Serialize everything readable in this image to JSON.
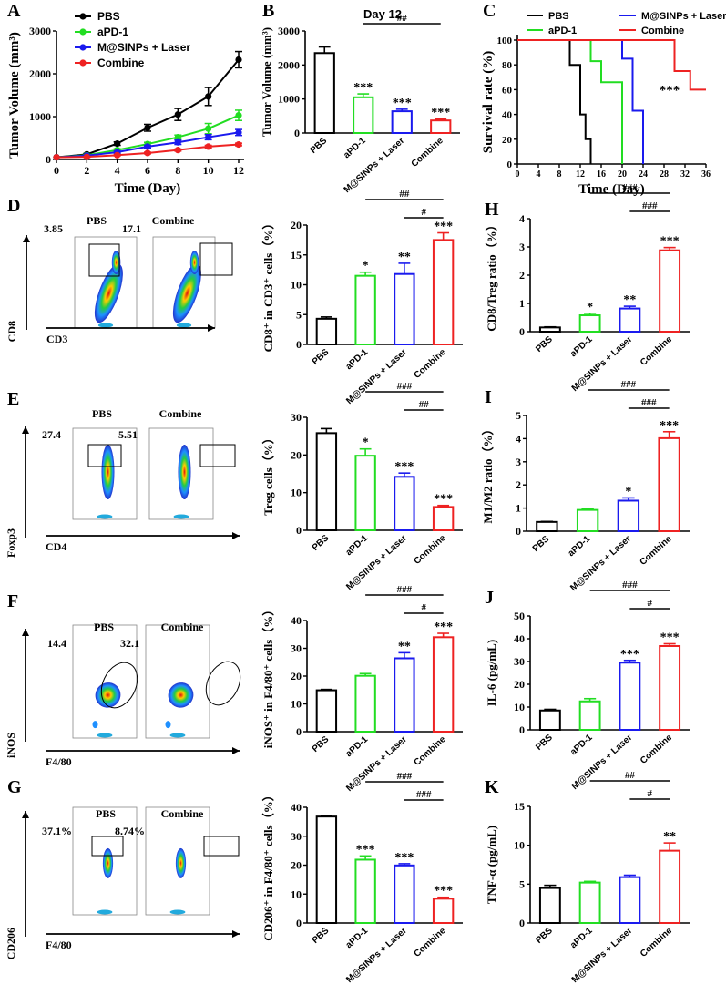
{
  "colors": {
    "pbs": "#000000",
    "apd1": "#22dd22",
    "mlaser": "#1a1aee",
    "combine": "#ee2222",
    "text": "#000000"
  },
  "chart_data": [
    {
      "id": "A",
      "type": "line",
      "panel_label": "A",
      "xlabel": "Time (Day)",
      "ylabel": "Tumor Volume (mm³)",
      "xlim": [
        0,
        12
      ],
      "ylim": [
        0,
        3000
      ],
      "xticks": [
        0,
        2,
        4,
        6,
        8,
        10,
        12
      ],
      "yticks": [
        0,
        1000,
        2000,
        3000
      ],
      "x": [
        0,
        2,
        4,
        6,
        8,
        10,
        12
      ],
      "series": [
        {
          "name": "PBS",
          "color": "#000000",
          "values": [
            50,
            120,
            370,
            740,
            1050,
            1470,
            2330
          ],
          "errors": [
            0,
            20,
            40,
            80,
            140,
            210,
            190
          ]
        },
        {
          "name": "aPD-1",
          "color": "#22dd22",
          "values": [
            50,
            100,
            220,
            360,
            520,
            720,
            1030
          ],
          "errors": [
            0,
            15,
            30,
            40,
            50,
            120,
            120
          ]
        },
        {
          "name": "M@SINPs + Laser",
          "color": "#1a1aee",
          "values": [
            50,
            90,
            170,
            300,
            400,
            520,
            630
          ],
          "errors": [
            0,
            15,
            25,
            30,
            50,
            60,
            70
          ]
        },
        {
          "name": "Combine",
          "color": "#ee2222",
          "values": [
            50,
            60,
            100,
            150,
            220,
            300,
            350
          ],
          "errors": [
            0,
            10,
            15,
            20,
            25,
            30,
            30
          ]
        }
      ]
    },
    {
      "id": "B",
      "type": "bar",
      "panel_label": "B",
      "title": "Day 12",
      "ylabel": "Tumor Volume (mm³)",
      "ylim": [
        0,
        3000
      ],
      "yticks": [
        0,
        1000,
        2000,
        3000
      ],
      "categories": [
        "PBS",
        "aPD-1",
        "M@SINPs + Laser",
        "Combine"
      ],
      "values": [
        2350,
        1050,
        640,
        370
      ],
      "errors": [
        180,
        100,
        60,
        40
      ],
      "stars": [
        "",
        "***",
        "***",
        "***"
      ],
      "brackets": [
        {
          "from": 1,
          "to": 3,
          "label": "##",
          "level": 0
        }
      ]
    },
    {
      "id": "C",
      "type": "line",
      "panel_label": "C",
      "xlabel": "Time (Day)",
      "ylabel": "Survival rate (%)",
      "xlim": [
        0,
        36
      ],
      "ylim": [
        0,
        100
      ],
      "xticks": [
        0,
        4,
        8,
        12,
        16,
        20,
        24,
        28,
        32,
        36
      ],
      "yticks": [
        0,
        20,
        40,
        60,
        80,
        100
      ],
      "legend": [
        "PBS",
        "aPD-1",
        "M@SINPs + Laser",
        "Combine"
      ],
      "annotation": "***",
      "series": [
        {
          "name": "PBS",
          "color": "#000000",
          "x": [
            0,
            10,
            10,
            12,
            12,
            13,
            13,
            14,
            14
          ],
          "values": [
            100,
            100,
            80,
            80,
            40,
            40,
            20,
            20,
            0
          ]
        },
        {
          "name": "aPD-1",
          "color": "#22dd22",
          "x": [
            0,
            14,
            14,
            16,
            16,
            20,
            20
          ],
          "values": [
            100,
            100,
            83,
            83,
            66,
            66,
            0
          ]
        },
        {
          "name": "M@SINPs + Laser",
          "color": "#1a1aee",
          "x": [
            0,
            20,
            20,
            22,
            22,
            24,
            24
          ],
          "values": [
            100,
            100,
            85,
            85,
            43,
            43,
            0
          ]
        },
        {
          "name": "Combine",
          "color": "#ee2222",
          "x": [
            0,
            30,
            30,
            33,
            33,
            36
          ],
          "values": [
            100,
            100,
            75,
            75,
            60,
            60
          ]
        }
      ]
    },
    {
      "id": "D",
      "type": "bar",
      "panel_label": "",
      "ylabel": "CD8⁺ in CD3⁺ cells（%）",
      "ylim": [
        0,
        20
      ],
      "yticks": [
        0,
        5,
        10,
        15,
        20
      ],
      "categories": [
        "PBS",
        "aPD-1",
        "M@SINPs + Laser",
        "Combine"
      ],
      "values": [
        4.3,
        11.5,
        11.8,
        17.5
      ],
      "errors": [
        0.3,
        0.6,
        1.8,
        1.2
      ],
      "stars": [
        "",
        "*",
        "**",
        "***"
      ],
      "brackets": [
        {
          "from": 2,
          "to": 3,
          "label": "#",
          "level": 0
        },
        {
          "from": 1,
          "to": 3,
          "label": "##",
          "level": 1
        }
      ]
    },
    {
      "id": "H",
      "type": "bar",
      "panel_label": "H",
      "ylabel": "CD8/Treg ratio（%）",
      "ylim": [
        0,
        4
      ],
      "yticks": [
        0,
        1,
        2,
        3,
        4
      ],
      "categories": [
        "PBS",
        "aPD-1",
        "M@SINPs + Laser",
        "Combine"
      ],
      "values": [
        0.15,
        0.58,
        0.82,
        2.88
      ],
      "errors": [
        0.02,
        0.07,
        0.08,
        0.1
      ],
      "stars": [
        "",
        "*",
        "**",
        "***"
      ],
      "brackets": [
        {
          "from": 2,
          "to": 3,
          "label": "###",
          "level": 0
        },
        {
          "from": 1,
          "to": 3,
          "label": "###",
          "level": 1
        }
      ]
    },
    {
      "id": "E",
      "type": "bar",
      "panel_label": "",
      "ylabel": "Treg cells（%）",
      "ylim": [
        0,
        30
      ],
      "yticks": [
        0,
        10,
        20,
        30
      ],
      "categories": [
        "PBS",
        "aPD-1",
        "M@SINPs + Laser",
        "Combine"
      ],
      "values": [
        25.8,
        19.8,
        14.2,
        6.2
      ],
      "errors": [
        1.2,
        1.8,
        1.0,
        0.4
      ],
      "stars": [
        "",
        "*",
        "***",
        "***"
      ],
      "brackets": [
        {
          "from": 2,
          "to": 3,
          "label": "##",
          "level": 0
        },
        {
          "from": 1,
          "to": 3,
          "label": "###",
          "level": 1
        }
      ]
    },
    {
      "id": "I",
      "type": "bar",
      "panel_label": "I",
      "ylabel": "M1/M2 ratio（%）",
      "ylim": [
        0,
        5
      ],
      "yticks": [
        0,
        1,
        2,
        3,
        4,
        5
      ],
      "categories": [
        "PBS",
        "aPD-1",
        "M@SINPs + Laser",
        "Combine"
      ],
      "values": [
        0.4,
        0.92,
        1.32,
        4.02
      ],
      "errors": [
        0.02,
        0.04,
        0.12,
        0.28
      ],
      "stars": [
        "",
        "",
        "*",
        "***"
      ],
      "brackets": [
        {
          "from": 2,
          "to": 3,
          "label": "###",
          "level": 0
        },
        {
          "from": 1,
          "to": 3,
          "label": "###",
          "level": 1
        }
      ]
    },
    {
      "id": "F",
      "type": "bar",
      "panel_label": "",
      "ylabel": "iNOS⁺ in F4/80⁺ cells（%）",
      "ylim": [
        0,
        40
      ],
      "yticks": [
        0,
        10,
        20,
        30,
        40
      ],
      "categories": [
        "PBS",
        "aPD-1",
        "M@SINPs + Laser",
        "Combine"
      ],
      "values": [
        14.9,
        20.1,
        26.4,
        34.0
      ],
      "errors": [
        0.3,
        0.8,
        2.0,
        1.4
      ],
      "stars": [
        "",
        "",
        "**",
        "***"
      ],
      "brackets": [
        {
          "from": 2,
          "to": 3,
          "label": "#",
          "level": 0
        },
        {
          "from": 1,
          "to": 3,
          "label": "###",
          "level": 1
        }
      ]
    },
    {
      "id": "J",
      "type": "bar",
      "panel_label": "J",
      "ylabel": "IL-6 (pg/mL)",
      "ylim": [
        0,
        50
      ],
      "yticks": [
        0,
        10,
        20,
        30,
        40,
        50
      ],
      "categories": [
        "PBS",
        "aPD-1",
        "M@SINPs + Laser",
        "Combine"
      ],
      "values": [
        8.5,
        12.5,
        29.5,
        36.8
      ],
      "errors": [
        0.5,
        1.2,
        1.0,
        1.0
      ],
      "stars": [
        "",
        "",
        "***",
        "***"
      ],
      "brackets": [
        {
          "from": 2,
          "to": 3,
          "label": "#",
          "level": 0
        },
        {
          "from": 1,
          "to": 3,
          "label": "###",
          "level": 1
        }
      ]
    },
    {
      "id": "G",
      "type": "bar",
      "panel_label": "",
      "ylabel": "CD206⁺ in F4/80⁺ cells（%）",
      "ylim": [
        0,
        40
      ],
      "yticks": [
        0,
        10,
        20,
        30,
        40
      ],
      "categories": [
        "PBS",
        "aPD-1",
        "M@SINPs + Laser",
        "Combine"
      ],
      "values": [
        36.8,
        21.9,
        19.9,
        8.4
      ],
      "errors": [
        0.2,
        1.3,
        0.6,
        0.5
      ],
      "stars": [
        "",
        "***",
        "***",
        "***"
      ],
      "brackets": [
        {
          "from": 2,
          "to": 3,
          "label": "###",
          "level": 0
        },
        {
          "from": 1,
          "to": 3,
          "label": "###",
          "level": 1
        }
      ]
    },
    {
      "id": "K",
      "type": "bar",
      "panel_label": "K",
      "ylabel": "TNF-α (pg/mL)",
      "ylim": [
        0,
        15
      ],
      "yticks": [
        0,
        5,
        10,
        15
      ],
      "categories": [
        "PBS",
        "aPD-1",
        "M@SINPs + Laser",
        "Combine"
      ],
      "values": [
        4.5,
        5.2,
        5.9,
        9.3
      ],
      "errors": [
        0.35,
        0.15,
        0.25,
        1.0
      ],
      "stars": [
        "",
        "",
        "",
        "**"
      ],
      "brackets": [
        {
          "from": 2,
          "to": 3,
          "label": "#",
          "level": 0
        },
        {
          "from": 1,
          "to": 3,
          "label": "##",
          "level": 1
        }
      ]
    }
  ],
  "flow": [
    {
      "id": "D",
      "label": "D",
      "yaxis": "CD8",
      "xaxis": "CD3",
      "left": {
        "title": "PBS",
        "value": "3.85"
      },
      "right": {
        "title": "Combine",
        "value": "17.1"
      },
      "gate": "rect",
      "shape": "tall"
    },
    {
      "id": "E",
      "label": "E",
      "yaxis": "Foxp3",
      "xaxis": "CD4",
      "left": {
        "title": "PBS",
        "value": "27.4"
      },
      "right": {
        "title": "Combine",
        "value": "5.51"
      },
      "gate": "rect",
      "shape": "mid"
    },
    {
      "id": "F",
      "label": "F",
      "yaxis": "iNOS",
      "xaxis": "F4/80",
      "left": {
        "title": "PBS",
        "value": "14.4"
      },
      "right": {
        "title": "Combine",
        "value": "32.1"
      },
      "gate": "ellipse",
      "shape": "diag"
    },
    {
      "id": "G",
      "label": "G",
      "yaxis": "CD206",
      "xaxis": "F4/80",
      "left": {
        "title": "PBS",
        "value": "37.1%"
      },
      "right": {
        "title": "Combine",
        "value": "8.74%"
      },
      "gate": "rect",
      "shape": "small"
    }
  ]
}
